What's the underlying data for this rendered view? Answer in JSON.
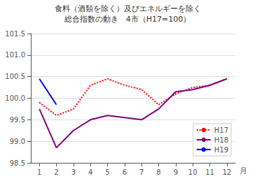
{
  "chart_data": {
    "type": "line",
    "title": "食料（酒類を除く）及びエネルギーを除く",
    "subtitle": "総合指数の動き　4市（H17=100）",
    "xlabel": "月",
    "x": [
      1,
      2,
      3,
      4,
      5,
      6,
      7,
      8,
      9,
      10,
      11,
      12
    ],
    "series": [
      {
        "name": "H17",
        "color": "red",
        "line_style": "dotted",
        "values": [
          99.9,
          99.6,
          99.75,
          100.3,
          100.45,
          100.3,
          100.2,
          99.85,
          100.1,
          100.25,
          100.3,
          100.45
        ]
      },
      {
        "name": "H18",
        "color": "#800080",
        "line_style": "solid",
        "values": [
          99.75,
          98.85,
          99.25,
          99.5,
          99.6,
          99.55,
          99.5,
          99.75,
          100.15,
          100.2,
          100.3,
          100.45
        ]
      },
      {
        "name": "H19",
        "color": "blue",
        "line_style": "solid",
        "values": [
          100.45,
          99.85,
          null,
          null,
          null,
          null,
          null,
          null,
          null,
          null,
          null,
          null
        ]
      }
    ],
    "xlim": [
      0.5,
      12.5
    ],
    "xticks": [
      1,
      2,
      3,
      4,
      5,
      6,
      7,
      8,
      9,
      10,
      11,
      12
    ],
    "ylim": [
      98.5,
      101.5
    ],
    "yticks": [
      98.5,
      {
        "value": 99.0,
        "label": "99.0"
      },
      99.5,
      {
        "value": 100.0,
        "label": "100.0"
      },
      100.5,
      {
        "value": 101.0,
        "label": "101.0"
      },
      101.5
    ],
    "grid": true,
    "legend": "lower right"
  }
}
